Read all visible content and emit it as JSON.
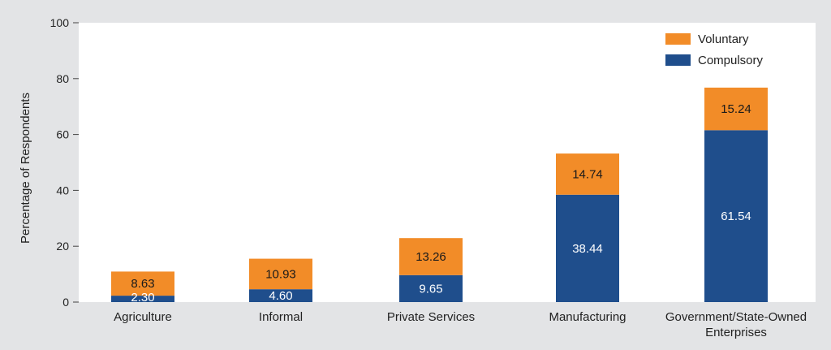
{
  "chart_data": {
    "type": "bar",
    "stacked": true,
    "title": "",
    "xlabel": "",
    "ylabel": "Percentage of Respondents",
    "ylim": [
      0,
      100
    ],
    "yticks": [
      0,
      20,
      40,
      60,
      80,
      100
    ],
    "categories": [
      [
        "Agriculture"
      ],
      [
        "Informal"
      ],
      [
        "Private Services"
      ],
      [
        "Manufacturing"
      ],
      [
        "Government/State-Owned",
        "Enterprises"
      ]
    ],
    "series": [
      {
        "name": "Compulsory",
        "color": "#1f4e8c",
        "values": [
          2.3,
          4.6,
          9.65,
          38.44,
          61.54
        ],
        "labels": [
          "2.30",
          "4.60",
          "9.65",
          "38.44",
          "61.54"
        ]
      },
      {
        "name": "Voluntary",
        "color": "#f28c28",
        "values": [
          8.63,
          10.93,
          13.26,
          14.74,
          15.24
        ],
        "labels": [
          "8.63",
          "10.93",
          "13.26",
          "14.74",
          "15.24"
        ]
      }
    ],
    "legend": {
      "position": "top-right",
      "order": [
        "Voluntary",
        "Compulsory"
      ]
    }
  }
}
